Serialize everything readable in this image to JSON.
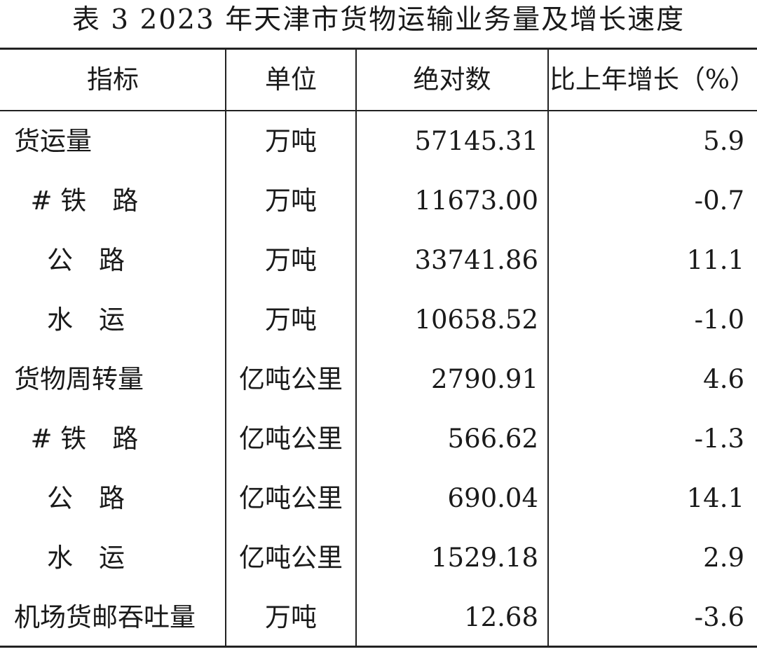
{
  "title": "表 3   2023 年天津市货物运输业务量及增长速度",
  "header": {
    "indicator": "指标",
    "unit": "单位",
    "absolute": "绝对数",
    "growth": "比上年增长（%）"
  },
  "rows": [
    {
      "indicator": "货运量",
      "unit": "万吨",
      "absolute": "57145.31",
      "growth": "5.9"
    },
    {
      "indicator": "  # 铁　路",
      "unit": "万吨",
      "absolute": "11673.00",
      "growth": "-0.7"
    },
    {
      "indicator": "    公　路",
      "unit": "万吨",
      "absolute": "33741.86",
      "growth": "11.1"
    },
    {
      "indicator": "    水　运",
      "unit": "万吨",
      "absolute": "10658.52",
      "growth": "-1.0"
    },
    {
      "indicator": "货物周转量",
      "unit": "亿吨公里",
      "absolute": "2790.91",
      "growth": "4.6"
    },
    {
      "indicator": "  # 铁　路",
      "unit": "亿吨公里",
      "absolute": "566.62",
      "growth": "-1.3"
    },
    {
      "indicator": "    公　路",
      "unit": "亿吨公里",
      "absolute": "690.04",
      "growth": "14.1"
    },
    {
      "indicator": "    水　运",
      "unit": "亿吨公里",
      "absolute": "1529.18",
      "growth": "2.9"
    },
    {
      "indicator": "机场货邮吞吐量",
      "unit": "万吨",
      "absolute": "12.68",
      "growth": "-3.6"
    }
  ]
}
